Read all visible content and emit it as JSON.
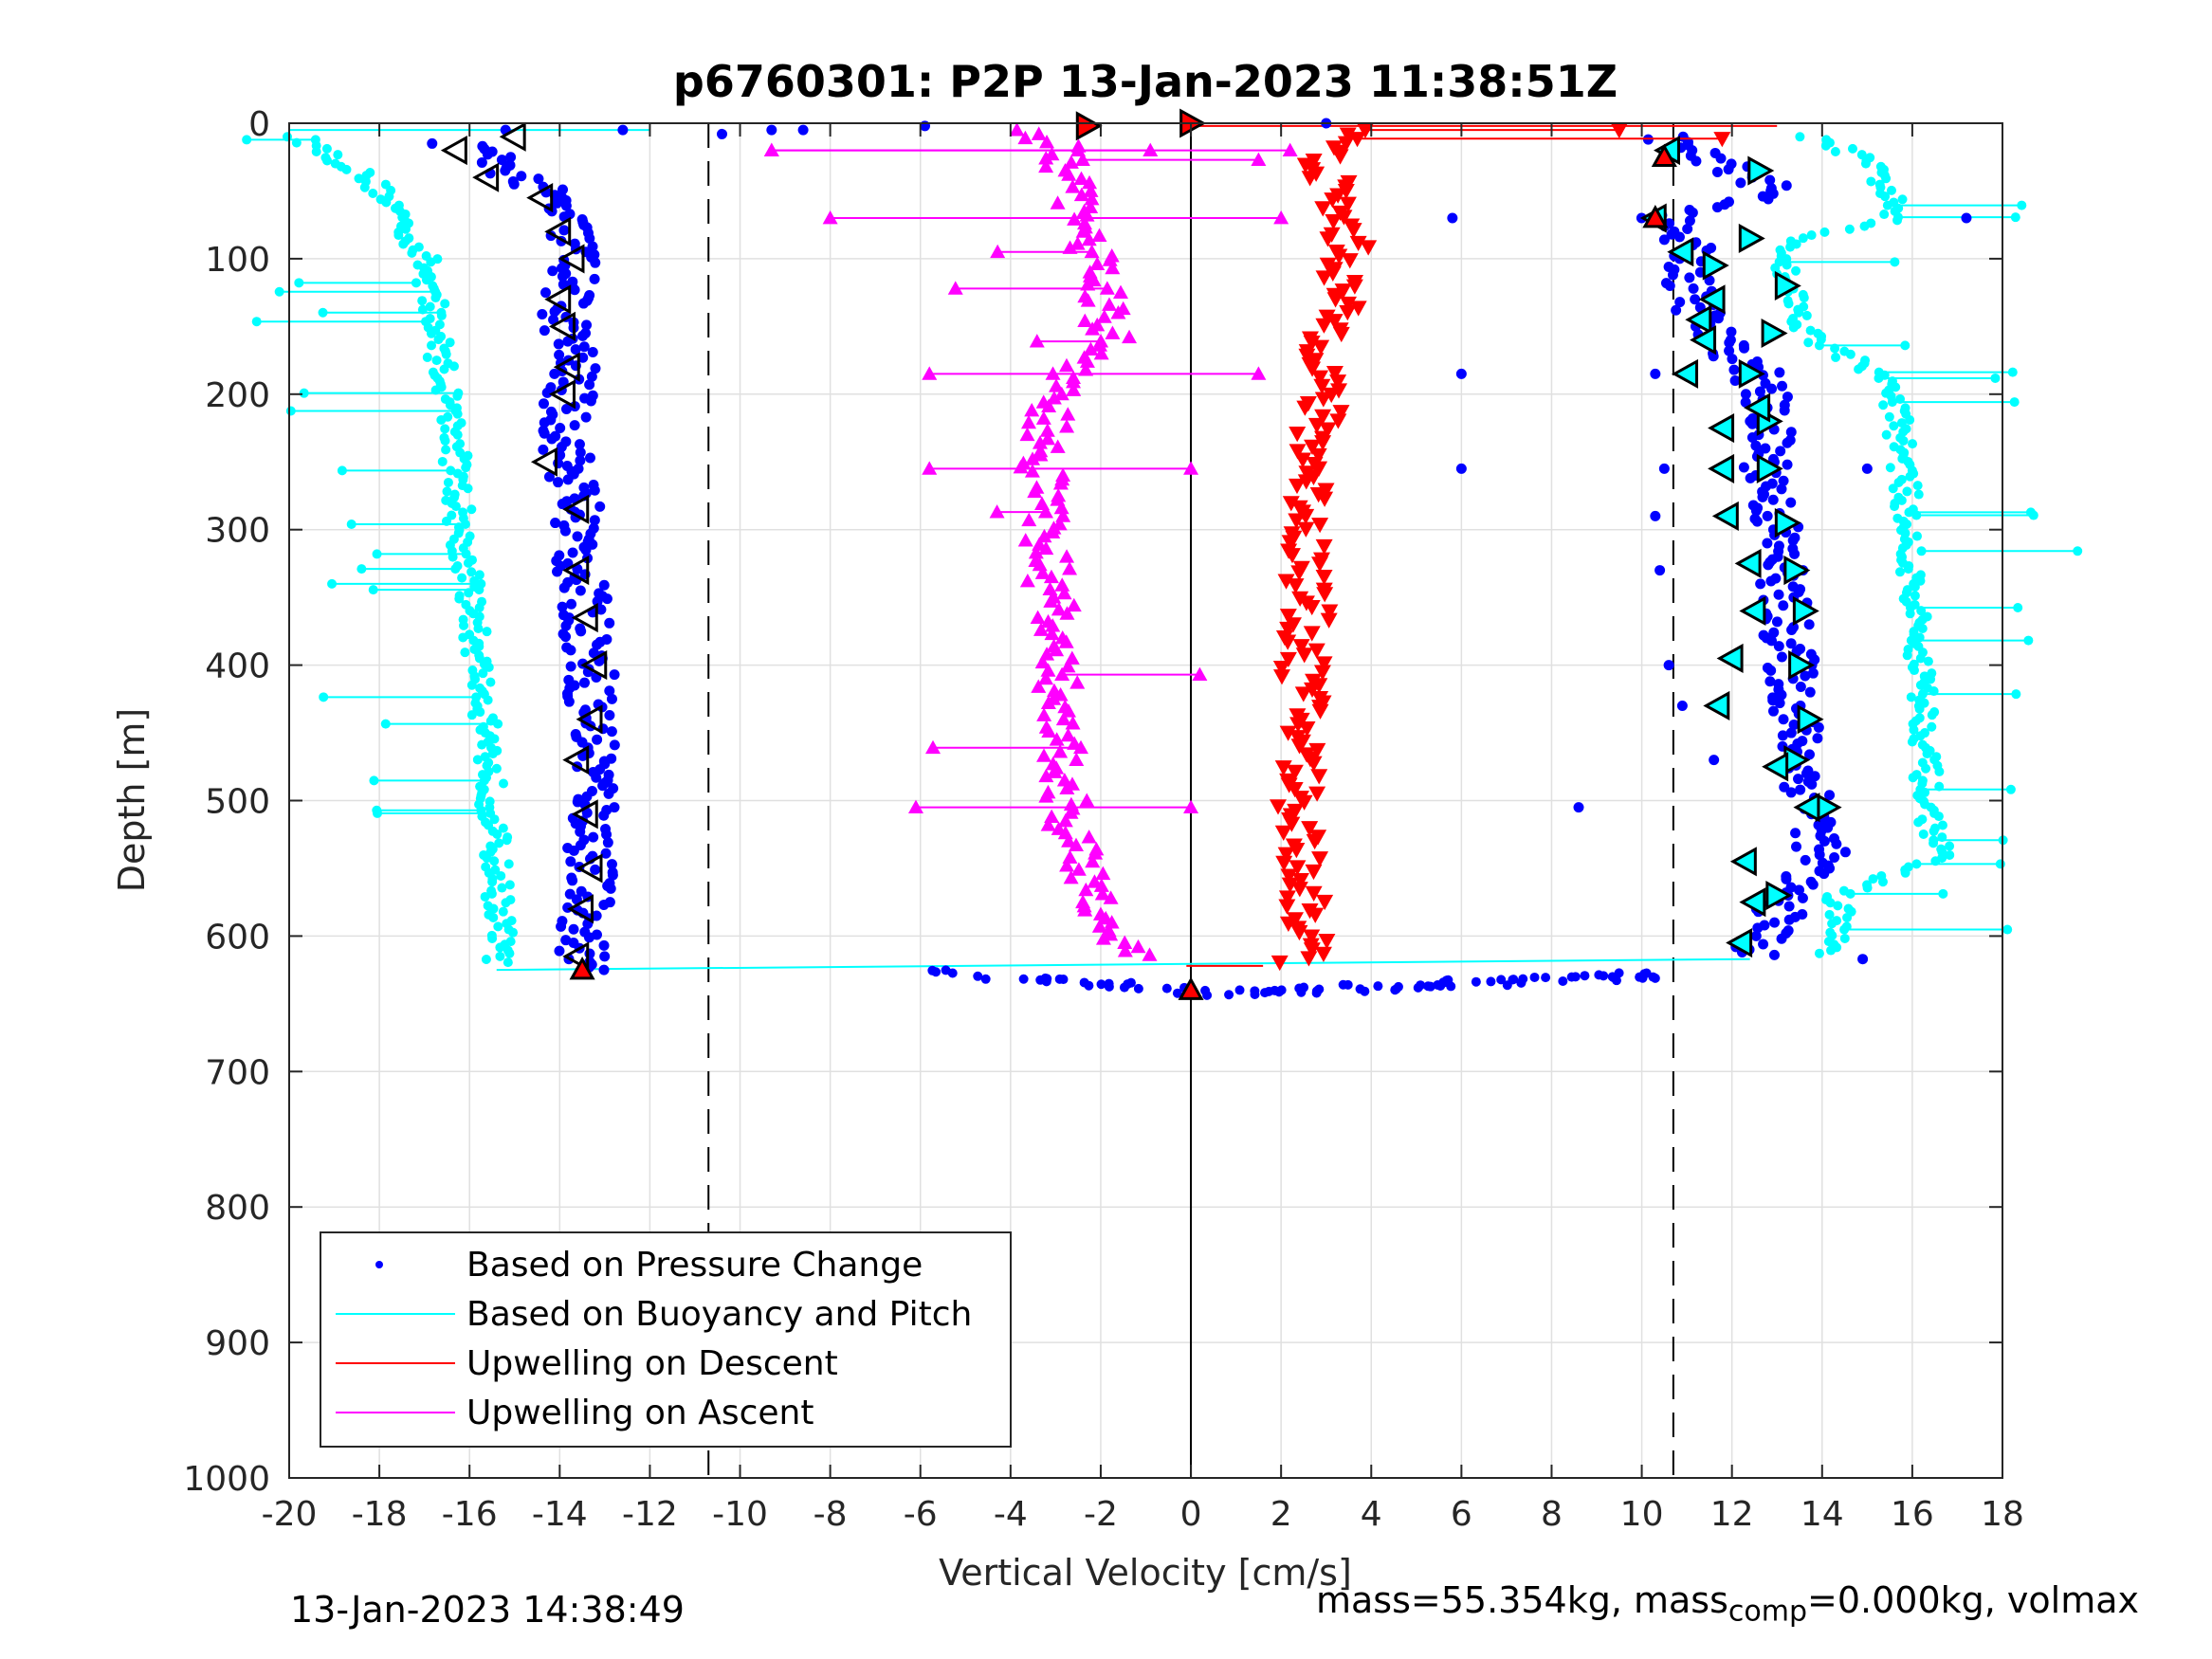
{
  "chart_data": {
    "type": "scatter",
    "title": "p6760301: P2P 13-Jan-2023 11:38:51Z",
    "xlabel": "Vertical Velocity [cm/s]",
    "ylabel": "Depth [m]",
    "xlim": [
      -20,
      18
    ],
    "ylim": [
      0,
      1000
    ],
    "y_reversed": true,
    "grid": true,
    "legend_position": "bottom-left",
    "x_ticks": [
      "-20",
      "-18",
      "-16",
      "-14",
      "-12",
      "-10",
      "-8",
      "-6",
      "-4",
      "-2",
      "0",
      "2",
      "4",
      "6",
      "8",
      "10",
      "12",
      "14",
      "16",
      "18"
    ],
    "y_ticks": [
      "0",
      "100",
      "200",
      "300",
      "400",
      "500",
      "600",
      "700",
      "800",
      "900",
      "1000"
    ],
    "reference_lines": {
      "dashed_x": [
        -10.7,
        10.7
      ],
      "solid_x": [
        0
      ]
    },
    "series": [
      {
        "name": "Based on Pressure Change",
        "color": "#0000ff",
        "marker": "dot",
        "profiles": [
          {
            "desc": "dive",
            "depth": [
              15,
              25,
              40,
              55,
              70,
              85,
              100,
              120,
              140,
              160,
              180,
              200,
              220,
              250,
              280,
              300,
              330,
              370,
              400,
              430,
              470,
              500,
              540,
              580,
              610,
              625
            ],
            "velocity": [
              -16.3,
              -15.5,
              -14.9,
              -14.2,
              -13.9,
              -13.7,
              -13.6,
              -13.8,
              -13.9,
              -13.8,
              -13.7,
              -13.8,
              -13.9,
              -13.8,
              -13.6,
              -13.6,
              -13.6,
              -13.4,
              -13.3,
              -13.3,
              -13.2,
              -13.2,
              -13.3,
              -13.4,
              -13.5,
              -13.4
            ]
          },
          {
            "desc": "climb",
            "depth": [
              10,
              25,
              40,
              55,
              70,
              85,
              100,
              120,
              140,
              160,
              180,
              200,
              220,
              250,
              280,
              300,
              330,
              370,
              400,
              430,
              470,
              500,
              540,
              570,
              600,
              615
            ],
            "velocity": [
              10.6,
              11.2,
              12.6,
              12.8,
              10.5,
              10.8,
              11.2,
              11.0,
              11.3,
              11.6,
              12.5,
              12.7,
              12.8,
              12.8,
              12.9,
              13.0,
              13.1,
              13.2,
              13.3,
              13.4,
              13.5,
              13.8,
              14.0,
              13.2,
              12.8,
              12.4
            ]
          },
          {
            "desc": "bottom",
            "depth": [
              628,
              632,
              636,
              639,
              641,
              640,
              638,
              635,
              632,
              629
            ],
            "velocity": [
              -5.5,
              -4.0,
              -2.0,
              -0.5,
              0.0,
              2.0,
              4.0,
              6.0,
              8.0,
              10.0
            ]
          }
        ]
      },
      {
        "name": "Based on Buoyancy and Pitch",
        "color": "#00ffff",
        "marker": "dot",
        "profiles": [
          {
            "desc": "dive",
            "depth": [
              10,
              25,
              40,
              55,
              70,
              85,
              100,
              120,
              140,
              160,
              180,
              200,
              250,
              300,
              350,
              400,
              450,
              500,
              550,
              600,
              620
            ],
            "velocity": [
              -19.8,
              -19.0,
              -18.3,
              -17.8,
              -17.5,
              -17.3,
              -17.0,
              -16.9,
              -16.8,
              -16.7,
              -16.6,
              -16.5,
              -16.3,
              -16.2,
              -16.0,
              -15.8,
              -15.6,
              -15.5,
              -15.4,
              -15.3,
              -15.4
            ]
          },
          {
            "desc": "climb",
            "depth": [
              10,
              25,
              40,
              55,
              70,
              85,
              100,
              120,
              140,
              160,
              180,
              200,
              250,
              300,
              350,
              400,
              450,
              500,
              540,
              570,
              600,
              615
            ],
            "velocity": [
              13.8,
              14.8,
              15.3,
              15.5,
              15.6,
              13.5,
              13.2,
              13.3,
              13.5,
              13.8,
              15.0,
              15.6,
              15.8,
              15.9,
              16.0,
              16.2,
              16.3,
              16.3,
              16.6,
              14.4,
              14.3,
              14.0
            ]
          }
        ]
      },
      {
        "name": "Upwelling on Descent",
        "color": "#ff0000",
        "marker": "triangle-down",
        "depth": [
          5,
          20,
          40,
          60,
          80,
          100,
          120,
          140,
          160,
          180,
          200,
          250,
          300,
          350,
          400,
          450,
          500,
          550,
          600,
          620
        ],
        "velocity": [
          4.0,
          3.0,
          3.0,
          3.2,
          3.4,
          3.5,
          3.3,
          3.2,
          3.1,
          3.0,
          2.9,
          2.7,
          2.6,
          2.6,
          2.5,
          2.5,
          2.4,
          2.5,
          2.6,
          2.4
        ]
      },
      {
        "name": "Upwelling on Ascent",
        "color": "#ff00ff",
        "marker": "triangle-up",
        "depth": [
          5,
          20,
          40,
          60,
          80,
          100,
          120,
          140,
          160,
          180,
          200,
          250,
          300,
          350,
          400,
          450,
          500,
          550,
          580,
          600,
          615
        ],
        "velocity": [
          -3.5,
          -2.8,
          -2.8,
          -2.5,
          -2.4,
          -2.2,
          -1.9,
          -1.9,
          -1.8,
          -2.4,
          -3.1,
          -3.3,
          -3.2,
          -3.1,
          -3.0,
          -2.9,
          -2.8,
          -2.5,
          -1.9,
          -1.7,
          -1.1
        ]
      }
    ],
    "open_markers": {
      "dive_left_triangles": {
        "depth": [
          10,
          20,
          40,
          55,
          80,
          100,
          130,
          150,
          180,
          200,
          250,
          285,
          330,
          365,
          400,
          440,
          470,
          510,
          550,
          580,
          615
        ],
        "velocity": [
          -15.0,
          -16.3,
          -15.6,
          -14.4,
          -14.0,
          -13.7,
          -14.0,
          -13.9,
          -13.8,
          -13.9,
          -14.3,
          -13.6,
          -13.6,
          -13.4,
          -13.2,
          -13.3,
          -13.6,
          -13.4,
          -13.3,
          -13.5,
          -13.6
        ]
      },
      "climb_right_triangles": {
        "depth": [
          35,
          85,
          105,
          120,
          155,
          185,
          220,
          255,
          295,
          330,
          360,
          400,
          440,
          470,
          505,
          570
        ],
        "velocity": [
          12.6,
          12.4,
          11.6,
          13.2,
          12.9,
          12.4,
          12.8,
          12.8,
          13.2,
          13.4,
          13.6,
          13.5,
          13.7,
          13.4,
          14.1,
          13.0
        ]
      },
      "climb_left_triangles": {
        "depth": [
          20,
          70,
          95,
          130,
          145,
          160,
          185,
          210,
          225,
          255,
          290,
          325,
          360,
          395,
          430,
          475,
          505,
          545,
          575,
          605
        ],
        "velocity": [
          10.6,
          10.3,
          10.9,
          11.6,
          11.3,
          11.4,
          11.0,
          12.6,
          11.8,
          11.8,
          11.9,
          12.4,
          12.5,
          12.0,
          11.7,
          13.0,
          13.7,
          12.3,
          12.5,
          12.2
        ]
      },
      "red_filled_right": {
        "depth": [
          0,
          2
        ],
        "velocity": [
          0.0,
          -2.3
        ]
      },
      "red_filled_up": {
        "depth": [
          25,
          70,
          625,
          640
        ],
        "velocity": [
          10.5,
          10.3,
          -13.5,
          0.0
        ]
      }
    }
  },
  "footer": {
    "timestamp": "13-Jan-2023 14:38:49",
    "mass_prefix": "mass=55.354kg, mass",
    "mass_sub": "comp",
    "mass_suffix": "=0.000kg, volmax"
  }
}
